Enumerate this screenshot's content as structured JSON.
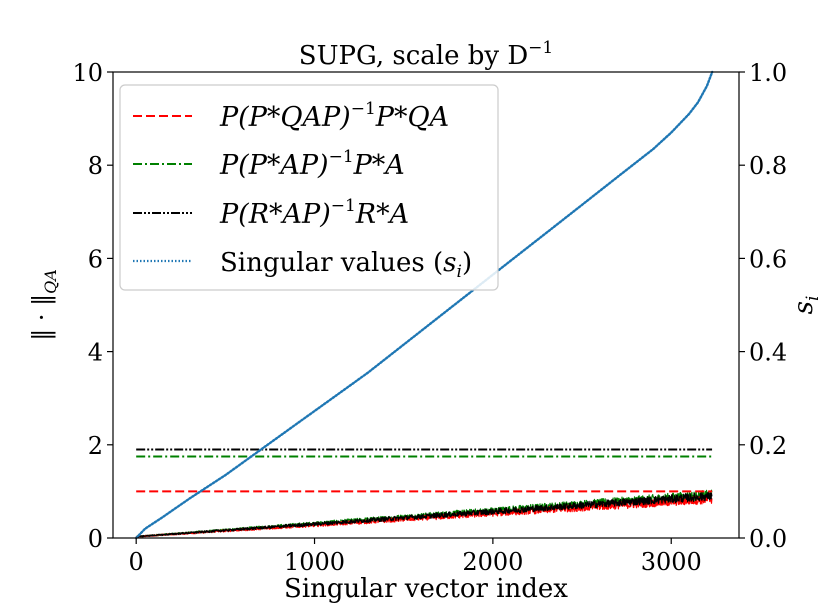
{
  "chart_data": {
    "type": "line",
    "title": "SUPG, scale by D",
    "title_sup": "−1",
    "xlabel": "Singular vector index",
    "ylabel_left": "‖ · ‖",
    "ylabel_left_sub": "QA",
    "ylabel_right": "s",
    "ylabel_right_sub": "i",
    "xlim": [
      -130,
      3380
    ],
    "ylim_left": [
      0,
      10
    ],
    "ylim_right": [
      0.0,
      1.0
    ],
    "x_ticks": [
      0,
      1000,
      2000,
      3000
    ],
    "x_tick_labels": [
      "0",
      "1000",
      "2000",
      "3000"
    ],
    "y_ticks_left": [
      0,
      2,
      4,
      6,
      8,
      10
    ],
    "y_tick_labels_left": [
      "0",
      "2",
      "4",
      "6",
      "8",
      "10"
    ],
    "y_ticks_right": [
      0.0,
      0.2,
      0.4,
      0.6,
      0.8,
      1.0
    ],
    "y_tick_labels_right": [
      "0.0",
      "0.2",
      "0.4",
      "0.6",
      "0.8",
      "1.0"
    ],
    "grid": false,
    "legend_position": "top-left",
    "n_points": 3230,
    "series": [
      {
        "name": "P(P*QAP)⁻¹P*QA",
        "axis": "left",
        "color": "#ff0000",
        "style": "dashed",
        "constant_norm": 1.0,
        "per_vector_start": 0.03,
        "per_vector_end": 0.83,
        "per_vector_noise": 0.08
      },
      {
        "name": "P(P*AP)⁻¹P*A",
        "axis": "left",
        "color": "#008000",
        "style": "dashdot",
        "constant_norm": 1.75,
        "per_vector_start": 0.03,
        "per_vector_end": 0.93,
        "per_vector_noise": 0.09
      },
      {
        "name": "P(R*AP)⁻¹R*A",
        "axis": "left",
        "color": "#000000",
        "style": "dashdotdot",
        "constant_norm": 1.9,
        "per_vector_start": 0.03,
        "per_vector_end": 0.9,
        "per_vector_noise": 0.08
      },
      {
        "name": "Singular values (s_i)",
        "axis": "right",
        "color": "#1f77b4",
        "style": "dotted",
        "x": [
          0,
          50,
          150,
          300,
          500,
          700,
          900,
          1100,
          1300,
          1500,
          1700,
          1900,
          2100,
          2300,
          2500,
          2700,
          2900,
          3000,
          3100,
          3150,
          3200,
          3230
        ],
        "values": [
          0.0,
          0.02,
          0.045,
          0.085,
          0.135,
          0.19,
          0.245,
          0.3,
          0.355,
          0.415,
          0.475,
          0.535,
          0.595,
          0.655,
          0.715,
          0.775,
          0.835,
          0.87,
          0.91,
          0.935,
          0.97,
          1.0
        ]
      }
    ],
    "legend": [
      {
        "label_main": "P(P",
        "label_rest": "*QAP)",
        "label_sup": "−1",
        "label_tail": "P*QA"
      },
      {
        "label_main": "P(P",
        "label_rest": "*AP)",
        "label_sup": "−1",
        "label_tail": "P*A"
      },
      {
        "label_main": "P(R",
        "label_rest": "*AP)",
        "label_sup": "−1",
        "label_tail": "R*A"
      },
      {
        "label_main": "Singular values (",
        "label_rest": "s",
        "label_sup": "i",
        "label_tail": ")"
      }
    ]
  }
}
